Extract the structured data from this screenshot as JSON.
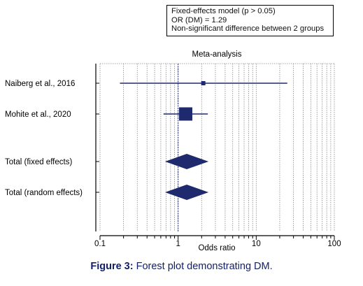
{
  "annotation": {
    "line1": "Fixed-effects model (p > 0.05)",
    "line2": "OR (DM) = 1.29",
    "line3": "Non-significant difference between 2 groups"
  },
  "caption": {
    "label": "Figure 3:",
    "text": " Forest plot demonstrating DM."
  },
  "chart_data": {
    "type": "forest",
    "title": "Meta-analysis",
    "xlabel": "Odds ratio",
    "x_scale": "log",
    "xlim": [
      0.1,
      100
    ],
    "x_ticks": [
      0.1,
      1,
      10,
      100
    ],
    "x_tick_labels": [
      "0.1",
      "1",
      "10",
      "100"
    ],
    "reference_line": 1,
    "grid": "vertical-dotted",
    "studies": [
      {
        "label": "Naiberg et al., 2016",
        "or": 2.1,
        "ci_low": 0.18,
        "ci_high": 25,
        "weight": "small"
      },
      {
        "label": "Mohite et al., 2020",
        "or": 1.25,
        "ci_low": 0.65,
        "ci_high": 2.4,
        "weight": "large"
      }
    ],
    "totals": [
      {
        "label": "Total (fixed effects)",
        "or": 1.29,
        "ci_low": 0.68,
        "ci_high": 2.45
      },
      {
        "label": "Total (random effects)",
        "or": 1.29,
        "ci_low": 0.68,
        "ci_high": 2.45
      }
    ],
    "colors": {
      "marker": "#1f2a6e",
      "axis": "#000000",
      "grid": "#8a8a8a",
      "reference": "#1f2a6e"
    }
  }
}
